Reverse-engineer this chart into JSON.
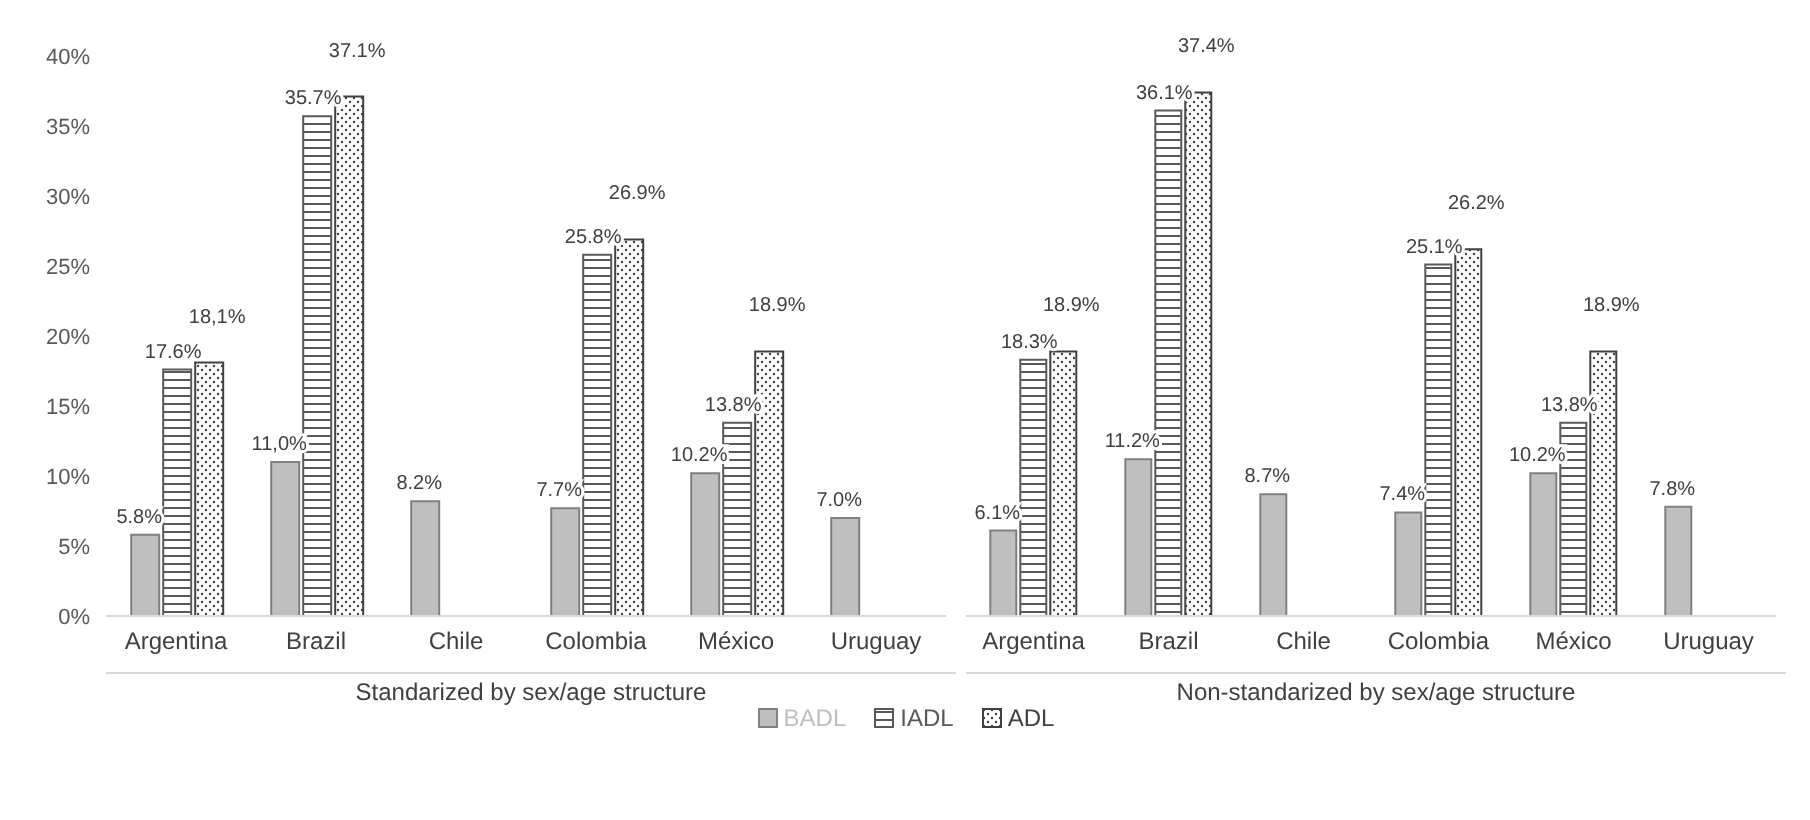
{
  "chart_data": [
    {
      "type": "bar",
      "xlabel": "Standarized by sex/age structure",
      "categories": [
        "Argentina",
        "Brazil",
        "Chile",
        "Colombia",
        "México",
        "Uruguay"
      ],
      "ylim": [
        0,
        40
      ],
      "yticks": [
        {
          "value": 0,
          "label": "0%"
        },
        {
          "value": 5,
          "label": "5%"
        },
        {
          "value": 10,
          "label": "10%"
        },
        {
          "value": 15,
          "label": "15%"
        },
        {
          "value": 20,
          "label": "20%"
        },
        {
          "value": 25,
          "label": "25%"
        },
        {
          "value": 30,
          "label": "30%"
        },
        {
          "value": 35,
          "label": "35%"
        },
        {
          "value": 40,
          "label": "40%"
        }
      ],
      "legend": "bottom",
      "series": [
        {
          "name": "BADL",
          "color": "#bfbfbf",
          "values": [
            5.8,
            11.0,
            8.2,
            7.7,
            10.2,
            7.0
          ],
          "value_labels": [
            "5.8%",
            "11,0%",
            "8.2%",
            "7.7%",
            "10.2%",
            "7.0%"
          ]
        },
        {
          "name": "IADL",
          "color": "#595959",
          "values": [
            17.6,
            35.7,
            null,
            25.8,
            13.8,
            null
          ],
          "value_labels": [
            "17.6%",
            "35.7%",
            null,
            "25.8%",
            "13.8%",
            null
          ]
        },
        {
          "name": "ADL",
          "color": "#404040",
          "values": [
            18.1,
            37.1,
            null,
            26.9,
            18.9,
            null
          ],
          "value_labels": [
            "18,1%",
            "37.1%",
            null,
            "26.9%",
            "18.9%",
            null
          ]
        }
      ]
    },
    {
      "type": "bar",
      "xlabel": "Non-standarized by sex/age structure",
      "categories": [
        "Argentina",
        "Brazil",
        "Chile",
        "Colombia",
        "México",
        "Uruguay"
      ],
      "ylim": [
        0,
        40
      ],
      "tick_labels": "x",
      "series": [
        {
          "color": "#bfbfbf",
          "values": [
            6.1,
            11.2,
            8.7,
            7.4,
            10.2,
            7.8
          ],
          "value_labels": [
            "6.1%",
            "11.2%",
            "8.7%",
            "7.4%",
            "10.2%",
            "7.8%"
          ]
        },
        {
          "color": "#595959",
          "values": [
            18.3,
            36.1,
            null,
            25.1,
            13.8,
            null
          ],
          "value_labels": [
            "18.3%",
            "36.1%",
            null,
            "25.1%",
            "13.8%",
            null
          ]
        },
        {
          "color": "#404040",
          "values": [
            18.9,
            37.4,
            null,
            26.2,
            18.9,
            null
          ],
          "value_labels": [
            "18.9%",
            "37.4%",
            null,
            "26.2%",
            "18.9%",
            null
          ]
        }
      ]
    }
  ]
}
